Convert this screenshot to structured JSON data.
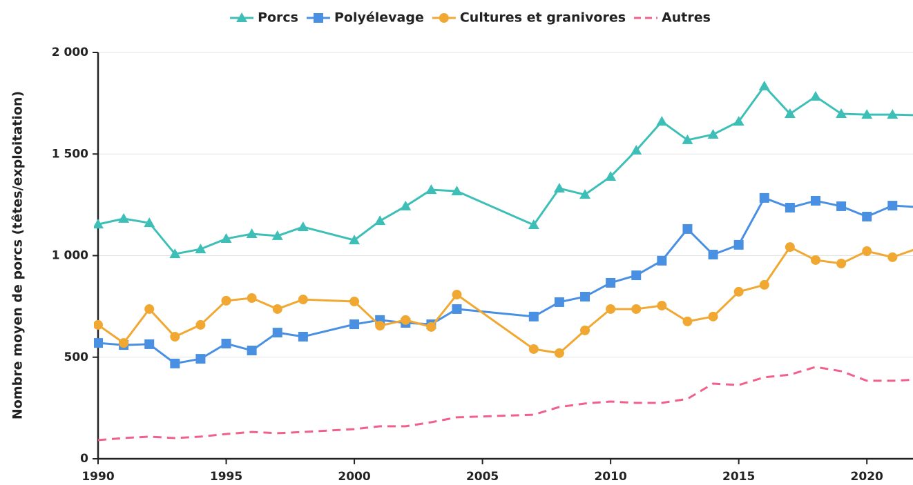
{
  "chart_data": {
    "type": "line",
    "y_label": "Nombre moyen de porcs (têtes/exploitation)",
    "x": [
      1990,
      1991,
      1992,
      1993,
      1994,
      1995,
      1996,
      1997,
      1998,
      2000,
      2001,
      2002,
      2003,
      2004,
      2007,
      2008,
      2009,
      2010,
      2011,
      2012,
      2013,
      2014,
      2015,
      2016,
      2017,
      2018,
      2019,
      2020,
      2021,
      2022
    ],
    "series": [
      {
        "name": "Porcs",
        "color": "#3dbfb8",
        "marker": "triangle",
        "linestyle": "solid",
        "values": [
          1154,
          1182,
          1161,
          1008,
          1032,
          1083,
          1107,
          1097,
          1141,
          1076,
          1171,
          1243,
          1324,
          1317,
          1151,
          1331,
          1300,
          1389,
          1518,
          1660,
          1569,
          1596,
          1660,
          1834,
          1698,
          1783,
          1698,
          1694,
          1694,
          1691
        ]
      },
      {
        "name": "Polyélevage",
        "color": "#4a90e2",
        "marker": "square",
        "linestyle": "solid",
        "values": [
          570,
          560,
          564,
          469,
          492,
          567,
          533,
          621,
          601,
          662,
          683,
          669,
          662,
          737,
          700,
          771,
          798,
          866,
          903,
          975,
          1131,
          1005,
          1053,
          1284,
          1236,
          1270,
          1243,
          1192,
          1246,
          1239
        ]
      },
      {
        "name": "Cultures et granivores",
        "color": "#f0a832",
        "marker": "circle",
        "linestyle": "solid",
        "values": [
          659,
          570,
          737,
          601,
          659,
          778,
          791,
          737,
          784,
          774,
          655,
          683,
          649,
          808,
          540,
          520,
          632,
          737,
          737,
          754,
          676,
          700,
          822,
          856,
          1042,
          978,
          961,
          1022,
          992,
          1036
        ]
      },
      {
        "name": "Autres",
        "color": "#f0608a",
        "marker": "none",
        "linestyle": "dashed",
        "values": [
          92,
          102,
          109,
          102,
          109,
          122,
          132,
          126,
          132,
          146,
          160,
          160,
          180,
          204,
          217,
          255,
          272,
          282,
          275,
          275,
          295,
          370,
          363,
          401,
          414,
          452,
          431,
          384,
          384,
          390
        ]
      }
    ],
    "xlim": [
      1990,
      2021.8
    ],
    "xticks": [
      1990,
      1995,
      2000,
      2005,
      2010,
      2015,
      2020
    ],
    "ylim": [
      0,
      2000
    ],
    "yticks": [
      0,
      500,
      {
        "value": 1000,
        "label": "1 000"
      },
      {
        "value": 1500,
        "label": "1 500"
      },
      {
        "value": 2000,
        "label": "2 000"
      }
    ],
    "grid": true,
    "legend": "top"
  }
}
